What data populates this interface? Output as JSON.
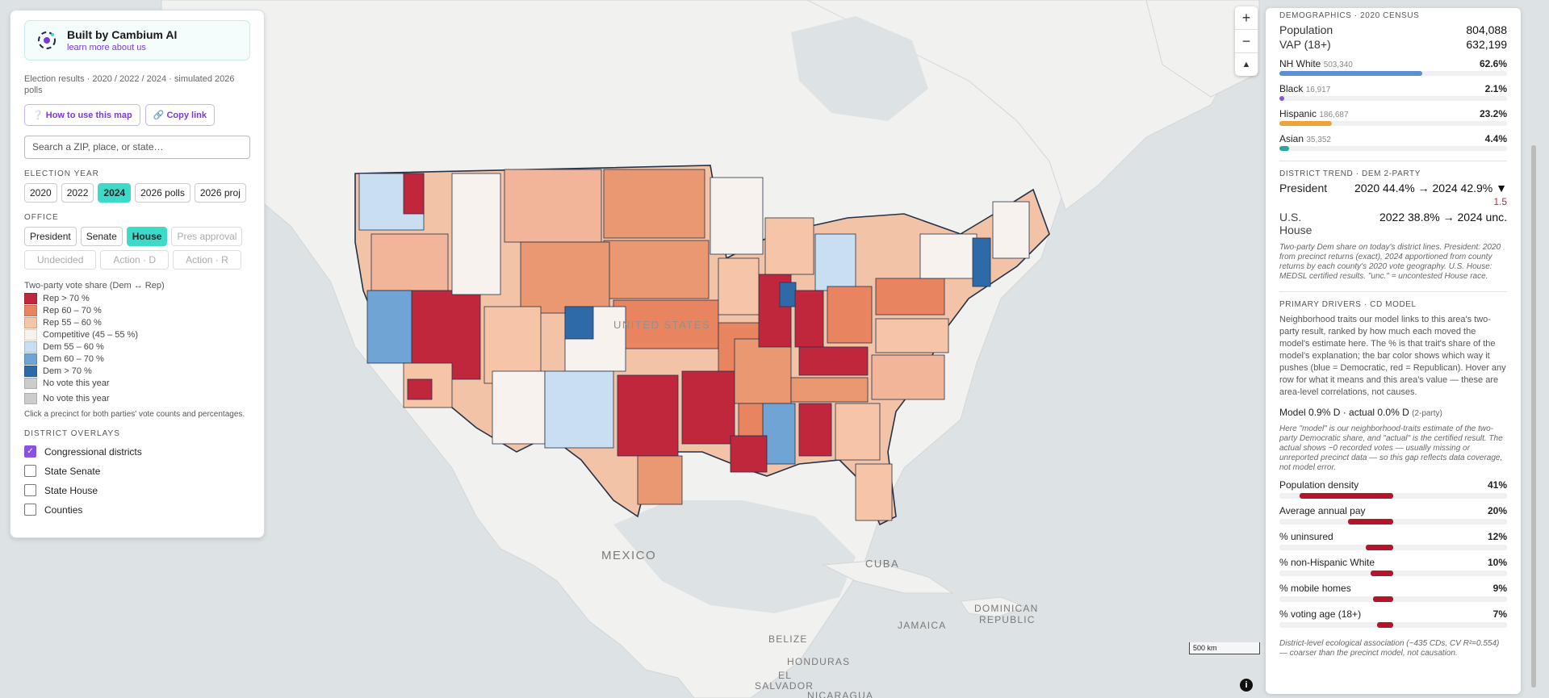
{
  "brand": {
    "name": "Built by Cambium AI",
    "link": "learn more about us"
  },
  "subtitle": "Election results · 2020 / 2022 / 2024 · simulated 2026 polls",
  "buttons": {
    "how_to": "❔ How to use this map",
    "copy_link": "🔗 Copy link"
  },
  "search": {
    "placeholder": "Search a ZIP, place, or state…"
  },
  "election_year": {
    "label": "ELECTION YEAR",
    "options": [
      "2020",
      "2022",
      "2024",
      "2026 polls",
      "2026 proj"
    ],
    "selected": "2024"
  },
  "office": {
    "label": "OFFICE",
    "options": [
      "President",
      "Senate",
      "House",
      "Pres approval"
    ],
    "selected": "House",
    "row2": [
      "Undecided",
      "Action · D",
      "Action · R"
    ]
  },
  "legend": {
    "title": "Two-party vote share (Dem ↔ Rep)",
    "items": [
      {
        "label": "Rep > 70 %",
        "color": "#c0273d"
      },
      {
        "label": "Rep 60 – 70 %",
        "color": "#e8845f"
      },
      {
        "label": "Rep 55 – 60 %",
        "color": "#f6c4a6"
      },
      {
        "label": "Competitive (45 – 55 %)",
        "color": "#f8f2ee"
      },
      {
        "label": "Dem 55 – 60 %",
        "color": "#c9def0"
      },
      {
        "label": "Dem 60 – 70 %",
        "color": "#6fa4d5"
      },
      {
        "label": "Dem > 70 %",
        "color": "#2f6aa8"
      },
      {
        "label": "No vote this year",
        "color": "#cccccc"
      },
      {
        "label": "No vote this year",
        "color": "#cccccc"
      }
    ],
    "note": "Click a precinct for both parties' vote counts and percentages."
  },
  "overlays": {
    "label": "DISTRICT OVERLAYS",
    "items": [
      {
        "label": "Congressional districts",
        "checked": true
      },
      {
        "label": "State Senate",
        "checked": false
      },
      {
        "label": "State House",
        "checked": false
      },
      {
        "label": "Counties",
        "checked": false
      }
    ]
  },
  "map": {
    "labels": {
      "mexico": "MEXICO",
      "cuba": "CUBA",
      "jamaica": "JAMAICA",
      "dominican": "DOMINICAN",
      "republic": "REPUBLIC",
      "belize": "BELIZE",
      "honduras": "HONDURAS",
      "el": "EL",
      "salvador": "SALVADOR",
      "nicaragua": "NICARAGUA",
      "united_states": "UNITED STATES"
    },
    "zoom_in": "+",
    "zoom_out": "−",
    "compass": "▲",
    "scale": "500 km",
    "info": "i"
  },
  "demographics": {
    "heading": "DEMOGRAPHICS · 2020 CENSUS",
    "population_label": "Population",
    "population": "804,088",
    "vap_label": "VAP (18+)",
    "vap": "632,199",
    "groups": [
      {
        "label": "NH White",
        "count": "503,340",
        "pct": "62.6%",
        "value": 62.6,
        "color": "#5b8fd6"
      },
      {
        "label": "Black",
        "count": "16,917",
        "pct": "2.1%",
        "value": 2.1,
        "color": "#8a52e0"
      },
      {
        "label": "Hispanic",
        "count": "186,687",
        "pct": "23.2%",
        "value": 23.2,
        "color": "#f0a23a"
      },
      {
        "label": "Asian",
        "count": "35,352",
        "pct": "4.4%",
        "value": 4.4,
        "color": "#2aa8a0"
      }
    ]
  },
  "trend": {
    "heading": "DISTRICT TREND · DEM 2-PARTY",
    "president_label": "President",
    "president_value": "2020 44.4% → 2024 42.9% ▼",
    "president_change": "1.5",
    "house_label1": "U.S.",
    "house_label2": "House",
    "house_value": "2022 38.8% → 2024 unc.",
    "note": "Two-party Dem share on today's district lines. President: 2020 from precinct returns (exact), 2024 apportioned from county returns by each county's 2020 vote geography. U.S. House: MEDSL certified results. \"unc.\" = uncontested House race."
  },
  "drivers": {
    "heading": "PRIMARY DRIVERS · CD MODEL",
    "intro": "Neighborhood traits our model links to this area's two-party result, ranked by how much each moved the model's estimate here. The % is that trait's share of the model's explanation; the bar color shows which way it pushes (blue = Democratic, red = Republican). Hover any row for what it means and this area's value — these are area-level correlations, not causes.",
    "model": "Model 0.9% D · actual 0.0% D",
    "model_suffix": "(2-party)",
    "model_note": "Here \"model\" is our neighborhood-traits estimate of the two-party Democratic share, and \"actual\" is the certified result. The actual shows ~0 recorded votes — usually missing or unreported precinct data — so this gap reflects data coverage, not model error.",
    "items": [
      {
        "label": "Population density",
        "pct": "41%",
        "value": 41
      },
      {
        "label": "Average annual pay",
        "pct": "20%",
        "value": 20
      },
      {
        "label": "% uninsured",
        "pct": "12%",
        "value": 12
      },
      {
        "label": "% non-Hispanic White",
        "pct": "10%",
        "value": 10
      },
      {
        "label": "% mobile homes",
        "pct": "9%",
        "value": 9
      },
      {
        "label": "% voting age (18+)",
        "pct": "7%",
        "value": 7
      }
    ],
    "footnote": "District-level ecological association (~435 CDs, CV R²=0.554) — coarser than the precinct model, not causation."
  }
}
